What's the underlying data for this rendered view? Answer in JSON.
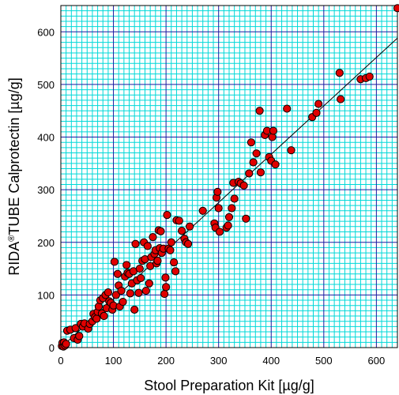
{
  "chart_data": {
    "type": "scatter",
    "title": "",
    "xlabel": "Stool Preparation Kit [µg/g]",
    "ylabel_parts": {
      "before": "RIDA",
      "sup": "®",
      "after": "TUBE Calprotectin [µg/g]"
    },
    "xlim": [
      0,
      640
    ],
    "ylim": [
      0,
      650
    ],
    "x_ticks": [
      "0",
      "100",
      "200",
      "300",
      "400",
      "500",
      "600"
    ],
    "y_ticks": [
      "0",
      "100",
      "200",
      "300",
      "400",
      "500",
      "600"
    ],
    "grid": {
      "minor_step": 10,
      "major_step": 100
    },
    "grid_colors": {
      "minor": "#00d8d8",
      "major": "#1a1aa0"
    },
    "marker": {
      "fill": "#e00000",
      "stroke": "#000000",
      "shape": "circle"
    },
    "regression_line": {
      "x": [
        0,
        640
      ],
      "y": [
        0,
        588
      ]
    },
    "points": [
      [
        2,
        3
      ],
      [
        3,
        9
      ],
      [
        5,
        2
      ],
      [
        6,
        10
      ],
      [
        8,
        4
      ],
      [
        10,
        7
      ],
      [
        12,
        32
      ],
      [
        18,
        34
      ],
      [
        25,
        18
      ],
      [
        28,
        37
      ],
      [
        32,
        15
      ],
      [
        35,
        22
      ],
      [
        38,
        45
      ],
      [
        42,
        40
      ],
      [
        45,
        46
      ],
      [
        52,
        36
      ],
      [
        55,
        45
      ],
      [
        60,
        50
      ],
      [
        62,
        64
      ],
      [
        65,
        58
      ],
      [
        68,
        55
      ],
      [
        70,
        68
      ],
      [
        72,
        78
      ],
      [
        75,
        90
      ],
      [
        78,
        65
      ],
      [
        80,
        94
      ],
      [
        82,
        60
      ],
      [
        85,
        100
      ],
      [
        87,
        75
      ],
      [
        90,
        105
      ],
      [
        92,
        88
      ],
      [
        95,
        85
      ],
      [
        98,
        72
      ],
      [
        100,
        80
      ],
      [
        102,
        163
      ],
      [
        105,
        100
      ],
      [
        108,
        140
      ],
      [
        110,
        118
      ],
      [
        112,
        78
      ],
      [
        115,
        108
      ],
      [
        118,
        87
      ],
      [
        122,
        135
      ],
      [
        125,
        157
      ],
      [
        127,
        142
      ],
      [
        130,
        140
      ],
      [
        132,
        103
      ],
      [
        135,
        122
      ],
      [
        138,
        145
      ],
      [
        140,
        72
      ],
      [
        142,
        197
      ],
      [
        145,
        128
      ],
      [
        148,
        104
      ],
      [
        150,
        150
      ],
      [
        152,
        132
      ],
      [
        155,
        165
      ],
      [
        158,
        200
      ],
      [
        160,
        168
      ],
      [
        162,
        108
      ],
      [
        165,
        193
      ],
      [
        168,
        122
      ],
      [
        170,
        155
      ],
      [
        172,
        172
      ],
      [
        175,
        210
      ],
      [
        178,
        178
      ],
      [
        180,
        185
      ],
      [
        182,
        160
      ],
      [
        184,
        165
      ],
      [
        186,
        223
      ],
      [
        188,
        189
      ],
      [
        190,
        221
      ],
      [
        192,
        180
      ],
      [
        195,
        188
      ],
      [
        197,
        102
      ],
      [
        199,
        133
      ],
      [
        200,
        115
      ],
      [
        202,
        252
      ],
      [
        205,
        188
      ],
      [
        208,
        185
      ],
      [
        210,
        200
      ],
      [
        215,
        162
      ],
      [
        218,
        145
      ],
      [
        220,
        242
      ],
      [
        225,
        241
      ],
      [
        230,
        222
      ],
      [
        235,
        207
      ],
      [
        238,
        200
      ],
      [
        242,
        197
      ],
      [
        245,
        230
      ],
      [
        270,
        260
      ],
      [
        292,
        236
      ],
      [
        294,
        228
      ],
      [
        296,
        285
      ],
      [
        298,
        296
      ],
      [
        300,
        265
      ],
      [
        302,
        220
      ],
      [
        315,
        228
      ],
      [
        318,
        232
      ],
      [
        320,
        248
      ],
      [
        325,
        265
      ],
      [
        328,
        313
      ],
      [
        330,
        283
      ],
      [
        338,
        315
      ],
      [
        342,
        312
      ],
      [
        348,
        308
      ],
      [
        352,
        245
      ],
      [
        358,
        331
      ],
      [
        362,
        390
      ],
      [
        366,
        352
      ],
      [
        372,
        369
      ],
      [
        378,
        450
      ],
      [
        380,
        333
      ],
      [
        388,
        404
      ],
      [
        392,
        412
      ],
      [
        396,
        362
      ],
      [
        400,
        355
      ],
      [
        402,
        400
      ],
      [
        404,
        412
      ],
      [
        408,
        348
      ],
      [
        430,
        454
      ],
      [
        438,
        375
      ],
      [
        478,
        438
      ],
      [
        486,
        446
      ],
      [
        490,
        463
      ],
      [
        530,
        522
      ],
      [
        532,
        472
      ],
      [
        570,
        510
      ],
      [
        580,
        512
      ],
      [
        587,
        515
      ],
      [
        640,
        645
      ]
    ]
  }
}
